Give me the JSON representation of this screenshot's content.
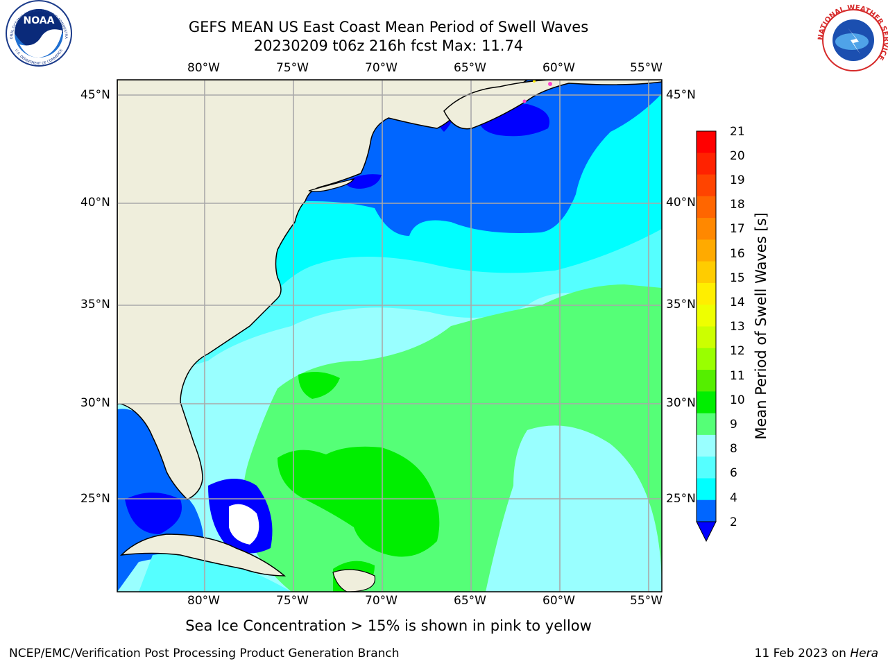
{
  "title": {
    "line1": "GEFS MEAN US East Coast Mean Period of Swell Waves",
    "line2": "20230209 t06z 216h fcst   Max: 11.74"
  },
  "map": {
    "lon_labels": [
      "80°W",
      "75°W",
      "70°W",
      "65°W",
      "60°W",
      "55°W"
    ],
    "lat_labels": [
      "45°N",
      "40°N",
      "35°N",
      "30°N",
      "25°N"
    ],
    "colors": {
      "land": "#efeedc",
      "sea_2_4": "#0066ff",
      "sea_lt_2": "#0000ff",
      "sea_4_6": "#00ffff",
      "sea_6_8": "#55ffff",
      "sea_8_9": "#99ffff",
      "sea_9_10": "#55ff77",
      "sea_10_11": "#00ee00",
      "grid": "#a9a9a9"
    }
  },
  "colorbar": {
    "label": "Mean Period of Swell Waves [s]",
    "ticks": [
      "21",
      "20",
      "19",
      "18",
      "17",
      "16",
      "15",
      "14",
      "13",
      "12",
      "11",
      "10",
      "9",
      "8",
      "6",
      "4",
      "2"
    ],
    "colors": [
      "#ff0000",
      "#ff2200",
      "#ff4400",
      "#ff6600",
      "#ff8800",
      "#ffaa00",
      "#ffcc00",
      "#ffee00",
      "#eeff00",
      "#ccff00",
      "#99ff00",
      "#55ee00",
      "#00ee00",
      "#55ff77",
      "#99ffff",
      "#55ffff",
      "#00ffff",
      "#0066ff"
    ],
    "extend_color": "#0000ff"
  },
  "note": "Sea Ice Concentration > 15% is shown in pink to yellow",
  "footer": {
    "left": "NCEP/EMC/Verification Post Processing Product Generation Branch",
    "right_text": "11 Feb 2023 on ",
    "right_italic": "Hera"
  },
  "logos": {
    "noaa_text": "NOAA",
    "noaa_ring_top": "NATIONAL OCEANIC AND ATMOSPHERIC ADMINISTRATION",
    "noaa_ring_bottom": "U.S. DEPARTMENT OF COMMERCE",
    "nws_ring": "NATIONAL WEATHER SERVICE"
  }
}
